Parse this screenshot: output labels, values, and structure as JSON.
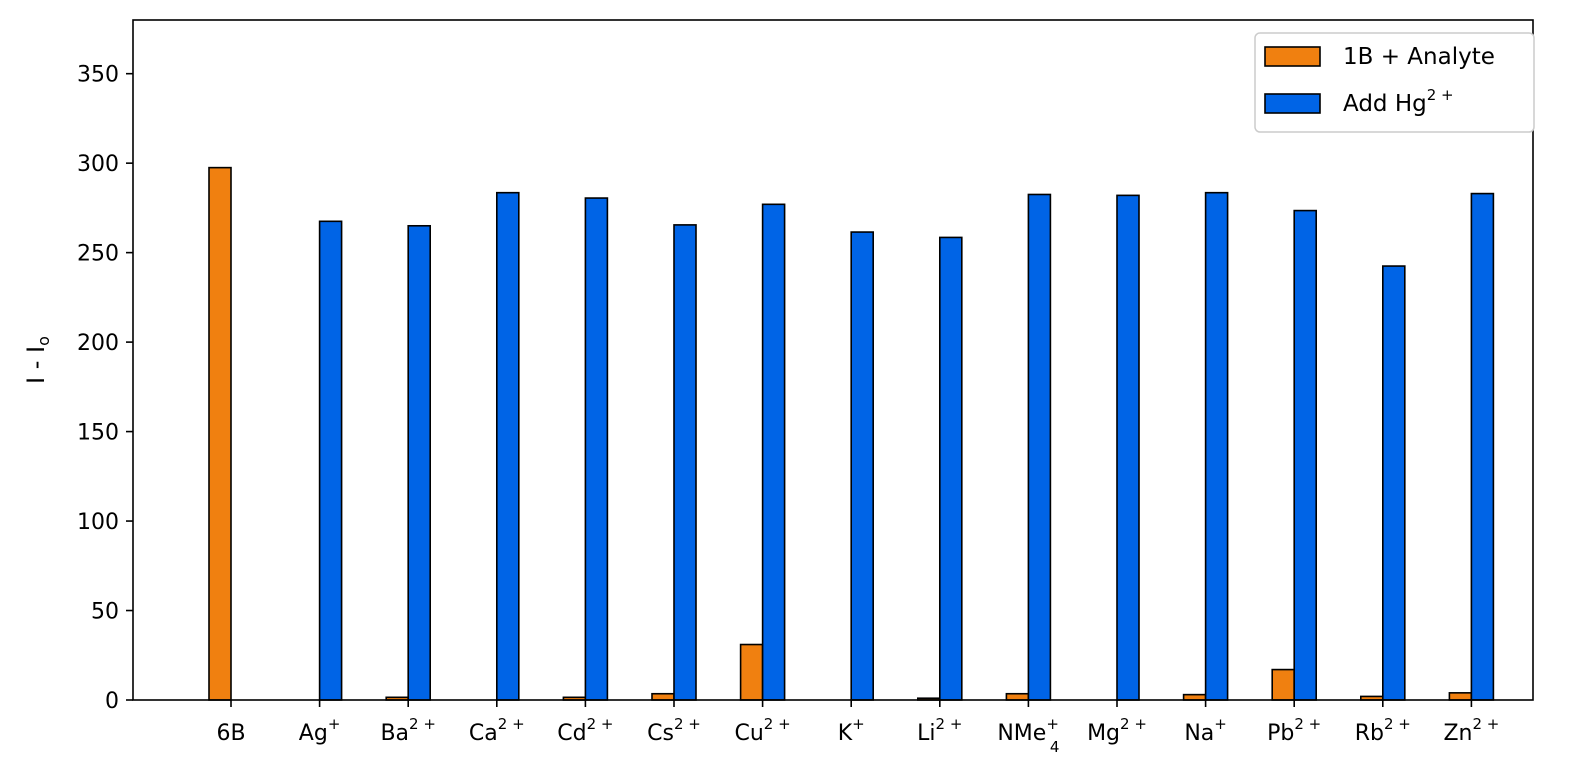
{
  "chart_data": {
    "type": "bar",
    "categories": [
      {
        "base": "6B",
        "sup": "",
        "sub": ""
      },
      {
        "base": "Ag",
        "sup": "+",
        "sub": ""
      },
      {
        "base": "Ba",
        "sup": "2+",
        "sub": ""
      },
      {
        "base": "Ca",
        "sup": "2+",
        "sub": ""
      },
      {
        "base": "Cd",
        "sup": "2+",
        "sub": ""
      },
      {
        "base": "Cs",
        "sup": "2+",
        "sub": ""
      },
      {
        "base": "Cu",
        "sup": "2+",
        "sub": ""
      },
      {
        "base": "K",
        "sup": "+",
        "sub": ""
      },
      {
        "base": "Li",
        "sup": "2+",
        "sub": ""
      },
      {
        "base": "NMe",
        "sup": "+",
        "sub": "4"
      },
      {
        "base": "Mg",
        "sup": "2+",
        "sub": ""
      },
      {
        "base": "Na",
        "sup": "+",
        "sub": ""
      },
      {
        "base": "Pb",
        "sup": "2+",
        "sub": ""
      },
      {
        "base": "Rb",
        "sup": "2+",
        "sub": ""
      },
      {
        "base": "Zn",
        "sup": "2+",
        "sub": ""
      }
    ],
    "series": [
      {
        "name": "1B + Analyte",
        "name_base": "1B + Analyte",
        "name_sup": "",
        "color": "#f08010",
        "values": [
          297.5,
          0,
          1.5,
          0,
          1.5,
          3.5,
          31,
          0,
          1,
          3.5,
          0,
          3,
          17,
          2,
          4
        ]
      },
      {
        "name": "Add Hg2+",
        "name_base": "Add Hg",
        "name_sup": "2+",
        "color": "#0064e6",
        "values": [
          0,
          267.5,
          265,
          283.5,
          280.5,
          265.5,
          277,
          261.5,
          258.5,
          282.5,
          282,
          283.5,
          273.5,
          242.5,
          283
        ]
      }
    ],
    "ylabel": {
      "base": "I - I",
      "sub": "o"
    },
    "xlabel": "",
    "ylim": [
      0,
      380
    ],
    "yticks": [
      0,
      50,
      100,
      150,
      200,
      250,
      300,
      350
    ],
    "grid": false,
    "legend_position": "top-right"
  }
}
